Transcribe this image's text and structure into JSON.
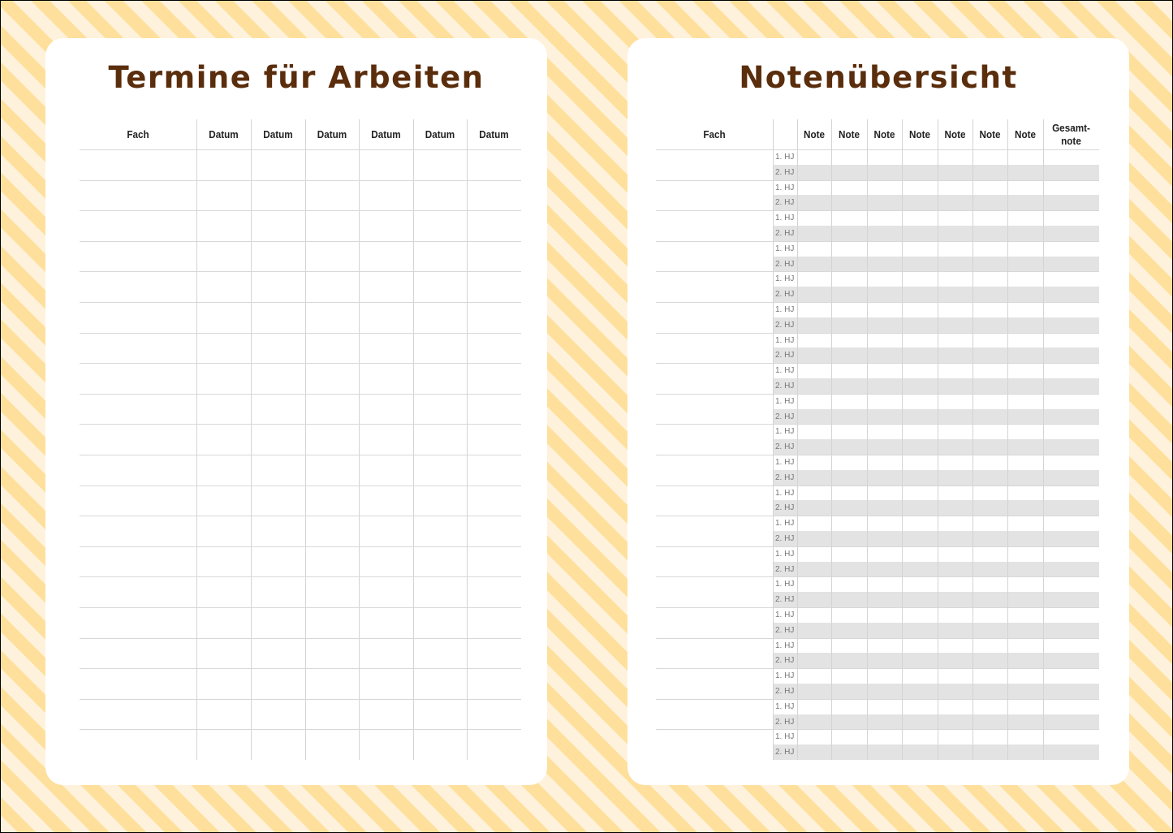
{
  "left": {
    "title": "Termine für Arbeiten",
    "headers": [
      "Fach",
      "Datum",
      "Datum",
      "Datum",
      "Datum",
      "Datum",
      "Datum"
    ]
  },
  "right": {
    "title": "Notenübersicht",
    "headers": [
      "Fach",
      "",
      "Note",
      "Note",
      "Note",
      "Note",
      "Note",
      "Note",
      "Note",
      "Gesamt-\nnote"
    ],
    "half_year_labels": [
      "1. HJ",
      "2. HJ"
    ]
  },
  "colors": {
    "title": "#5a2d0c",
    "stripe_light": "#fef2dc",
    "stripe_dark": "#fee09c",
    "shaded_row": "#e3e3e3"
  }
}
